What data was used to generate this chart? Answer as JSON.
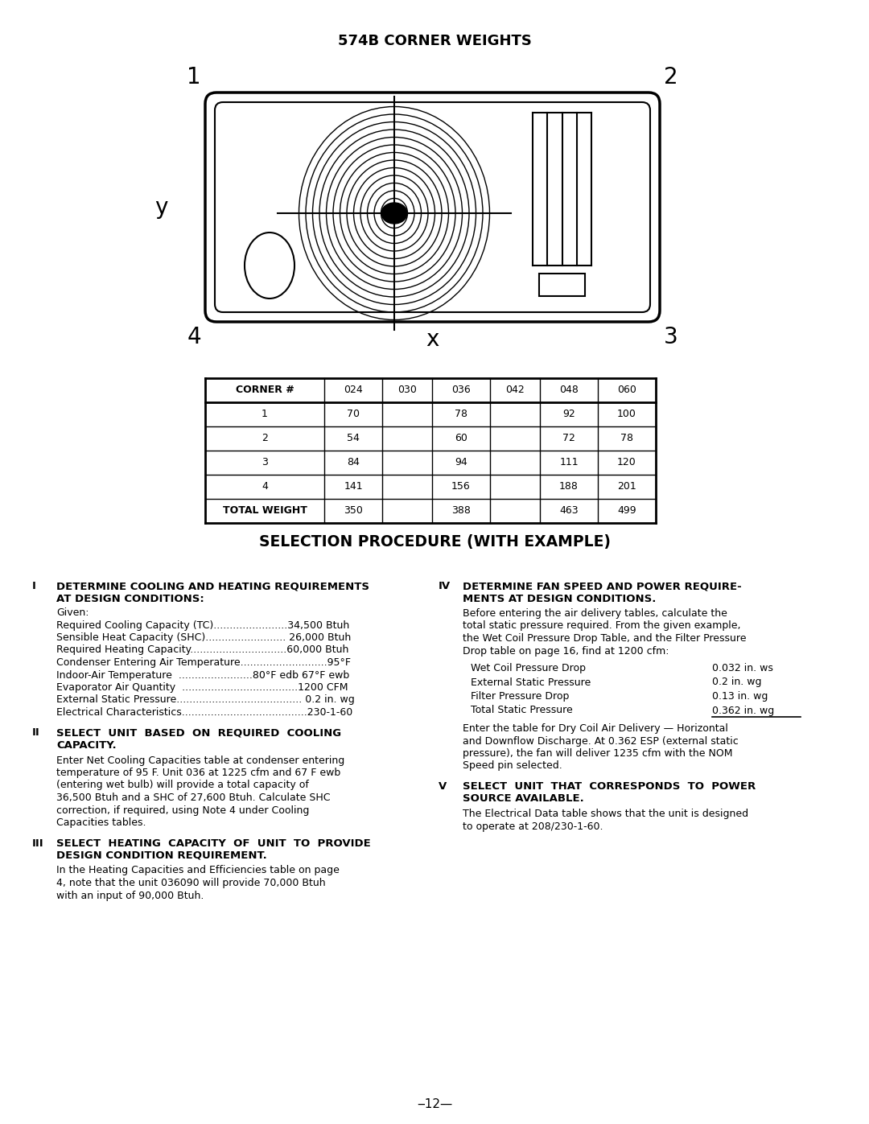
{
  "title": "574B CORNER WEIGHTS",
  "table_headers": [
    "CORNER #",
    "024",
    "030",
    "036",
    "042",
    "048",
    "060"
  ],
  "table_rows": [
    [
      "1",
      "70",
      "",
      "78",
      "",
      "92",
      "100"
    ],
    [
      "2",
      "54",
      "",
      "60",
      "",
      "72",
      "78"
    ],
    [
      "3",
      "84",
      "",
      "94",
      "",
      "111",
      "120"
    ],
    [
      "4",
      "141",
      "",
      "156",
      "",
      "188",
      "201"
    ],
    [
      "TOTAL WEIGHT",
      "350",
      "",
      "388",
      "",
      "463",
      "499"
    ]
  ],
  "section_title": "SELECTION PROCEDURE (WITH EXAMPLE)",
  "sec_I_head1": "DETERMINE COOLING AND HEATING REQUIREMENTS",
  "sec_I_head2": "AT DESIGN CONDITIONS:",
  "sec_I_content": [
    "Given:",
    "Required Cooling Capacity (TC).......................34,500 Btuh",
    "Sensible Heat Capacity (SHC)......................... 26,000 Btuh",
    "Required Heating Capacity..............................60,000 Btuh",
    "Condenser Entering Air Temperature...........................95°F",
    "Indoor-Air Temperature  .......................80°F edb 67°F ewb",
    "Evaporator Air Quantity  ....................................1200 CFM",
    "External Static Pressure....................................... 0.2 in. wg",
    "Electrical Characteristics.......................................230-1-60"
  ],
  "sec_II_head1": "SELECT  UNIT  BASED  ON  REQUIRED  COOLING",
  "sec_II_head2": "CAPACITY.",
  "sec_II_content": "Enter Net Cooling Capacities table at condenser entering temperature of 95 F. Unit 036 at 1225 cfm and 67 F ewb (entering wet bulb) will provide a total capacity of 36,500 Btuh and a SHC of 27,600 Btuh. Calculate SHC correction, if required, using Note 4 under Cooling Capacities tables.",
  "sec_III_head1": "SELECT  HEATING  CAPACITY  OF  UNIT  TO  PROVIDE",
  "sec_III_head2": "DESIGN CONDITION REQUIREMENT.",
  "sec_III_content": "In the Heating Capacities and Efficiencies table on page 4, note that the unit 036090 will provide 70,000 Btuh with an input of 90,000 Btuh.",
  "sec_IV_head1": "DETERMINE FAN SPEED AND POWER REQUIRE-",
  "sec_IV_head2": "MENTS AT DESIGN CONDITIONS.",
  "sec_IV_intro": "Before entering the air delivery tables, calculate the total static pressure required. From the given example, the Wet Coil Pressure Drop Table, and the Filter Pressure Drop table on page 16, find at 1200 cfm:",
  "sec_IV_items": [
    [
      "Wet Coil Pressure Drop",
      "0.032 in. ws"
    ],
    [
      "External Static Pressure",
      "0.2 in. wg"
    ],
    [
      "Filter Pressure Drop",
      "0.13 in. wg"
    ],
    [
      "Total Static Pressure",
      "0.362 in. wg"
    ]
  ],
  "sec_IV_outro": "Enter the table for Dry Coil Air Delivery — Horizontal and Downflow Discharge. At 0.362 ESP (external static pressure), the fan will deliver 1235 cfm with the NOM Speed pin selected.",
  "sec_V_head1": "SELECT  UNIT  THAT  CORRESPONDS  TO  POWER",
  "sec_V_head2": "SOURCE AVAILABLE.",
  "sec_V_content": "The Electrical Data table shows that the unit is designed to operate at 208/230-1-60.",
  "page_number": "‒12—",
  "bg_color": "#ffffff"
}
